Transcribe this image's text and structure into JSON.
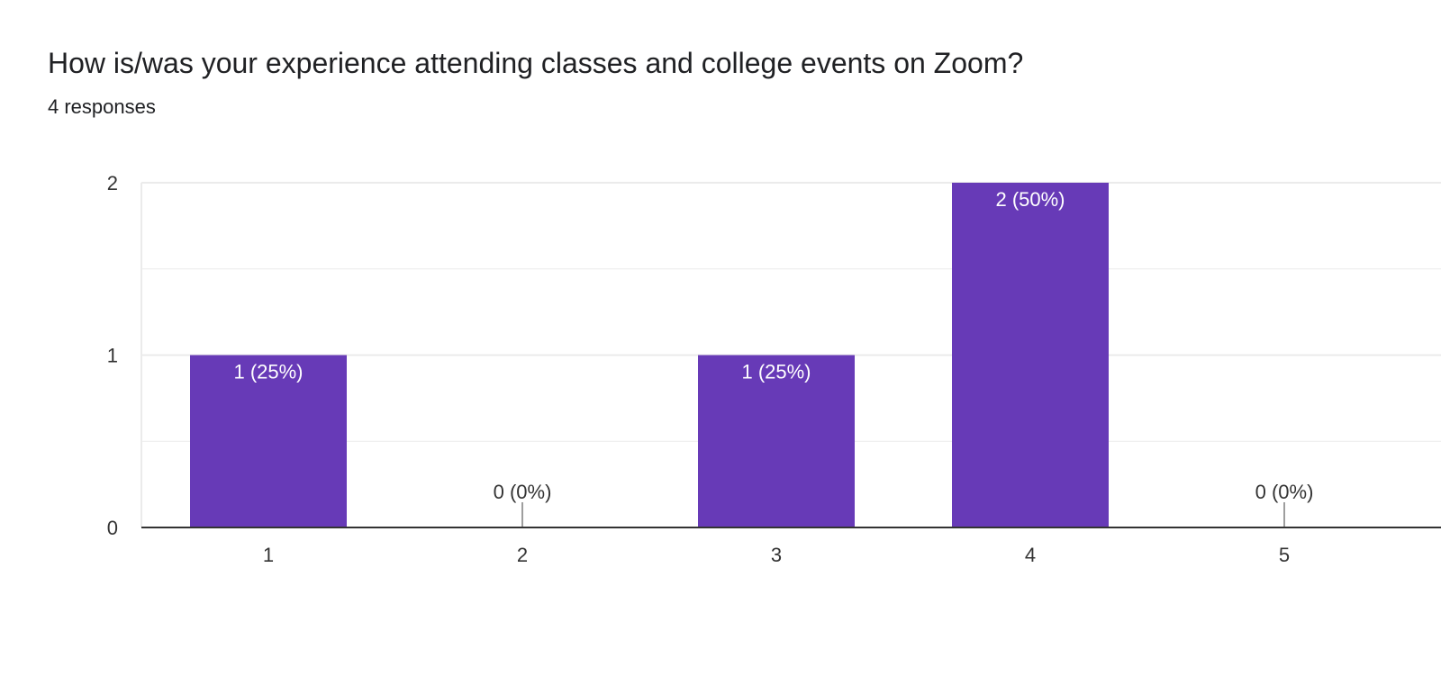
{
  "question": {
    "title": "How is/was your experience attending classes and college events on Zoom?",
    "responses_label": "4 responses"
  },
  "colors": {
    "bar": "#673ab7",
    "grid": "#ebebeb",
    "axis": "#333333",
    "label_inside": "#ffffff",
    "label_outside": "#333333",
    "zero_tick": "#9e9e9e"
  },
  "chart_data": {
    "type": "bar",
    "categories": [
      "1",
      "2",
      "3",
      "4",
      "5"
    ],
    "values": [
      1,
      0,
      1,
      2,
      0
    ],
    "data_labels": [
      "1 (25%)",
      "0 (0%)",
      "1 (25%)",
      "2 (50%)",
      "0 (0%)"
    ],
    "y_ticks": [
      "0",
      "1",
      "2"
    ],
    "ylim": [
      0,
      2
    ],
    "grid": true,
    "xlabel": "",
    "ylabel": ""
  }
}
